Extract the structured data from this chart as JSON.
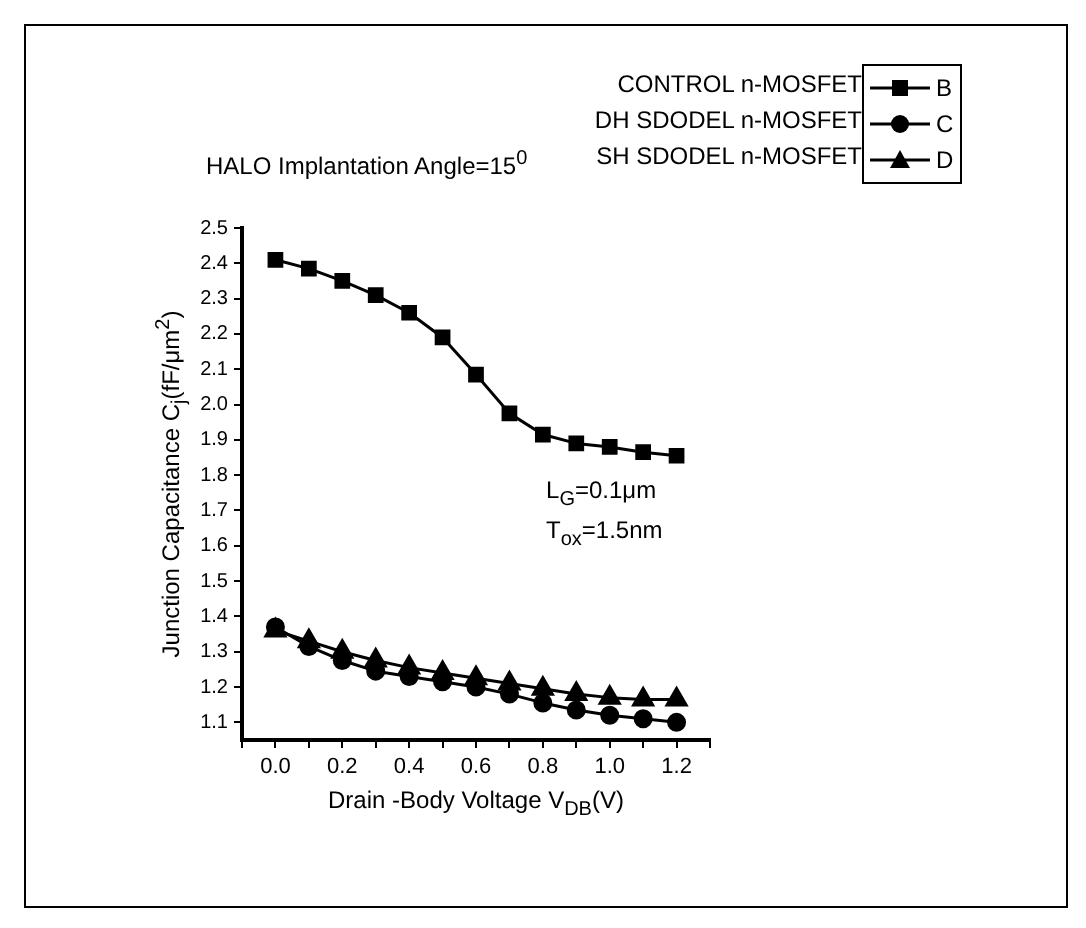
{
  "chart_data": {
    "type": "line",
    "xlabel": "Drain -Body Voltage V$_{DB}$(V)",
    "ylabel": "Junction Capacitance C$_{j}$(fF/μm$^{2}$)",
    "x": [
      0,
      0.1,
      0.2,
      0.3,
      0.4,
      0.5,
      0.6,
      0.7,
      0.8,
      0.9,
      1.0,
      1.1,
      1.2
    ],
    "series": [
      {
        "name": "B",
        "color": "#000000",
        "marker": "square",
        "values": [
          2.41,
          2.385,
          2.35,
          2.31,
          2.26,
          2.19,
          2.085,
          1.975,
          1.915,
          1.89,
          1.88,
          1.865,
          1.855
        ]
      },
      {
        "name": "C",
        "color": "#000000",
        "marker": "circle",
        "values": [
          1.37,
          1.315,
          1.275,
          1.245,
          1.23,
          1.215,
          1.2,
          1.18,
          1.155,
          1.135,
          1.12,
          1.11,
          1.1
        ]
      },
      {
        "name": "D",
        "color": "#000000",
        "marker": "triangle",
        "values": [
          1.36,
          1.33,
          1.3,
          1.275,
          1.255,
          1.24,
          1.225,
          1.21,
          1.195,
          1.18,
          1.17,
          1.165,
          1.165
        ]
      }
    ],
    "xlim": [
      -0.1,
      1.3
    ],
    "xticks": [
      {
        "value": -0.1,
        "label": null
      },
      {
        "value": 0,
        "label": "0.0"
      },
      {
        "value": 0.1,
        "label": null
      },
      {
        "value": 0.2,
        "label": "0.2"
      },
      {
        "value": 0.3,
        "label": null
      },
      {
        "value": 0.4,
        "label": "0.4"
      },
      {
        "value": 0.5,
        "label": null
      },
      {
        "value": 0.6,
        "label": "0.6"
      },
      {
        "value": 0.7,
        "label": null
      },
      {
        "value": 0.8,
        "label": "0.8"
      },
      {
        "value": 0.9,
        "label": null
      },
      {
        "value": 1.0,
        "label": "1.0"
      },
      {
        "value": 1.1,
        "label": null
      },
      {
        "value": 1.2,
        "label": "1.2"
      },
      {
        "value": 1.3,
        "label": null
      }
    ],
    "ylim": [
      1.05,
      2.5
    ],
    "yticks": [
      1.1,
      1.2,
      1.3,
      1.4,
      1.5,
      1.6,
      1.7,
      1.8,
      1.9,
      {
        "value": 2.0,
        "label": "2.0"
      },
      2.1,
      2.2,
      2.3,
      2.4,
      2.5
    ],
    "grid": false,
    "legend": "top right",
    "line_style": "solid",
    "annotations": [
      "HALO Implantation Angle=15$^{0}$",
      "CONTROL n-MOSFET",
      "DH SDODEL n-MOSFET",
      "SH SDODEL n-MOSFET",
      "L$_{G}$=0.1μm",
      "T$_{ox}$=1.5nm"
    ]
  }
}
